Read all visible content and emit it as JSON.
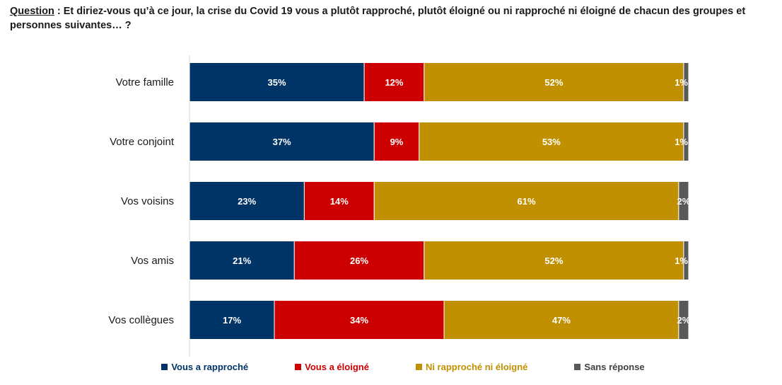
{
  "question": {
    "label": "Question",
    "separator": " :  ",
    "text": "Et diriez-vous qu’à ce jour, la crise du Covid 19 vous a plutôt rapproché, plutôt éloigné ou ni rapproché ni éloigné de chacun des groupes et personnes suivantes… ?"
  },
  "chart_data": {
    "type": "bar",
    "orientation": "horizontal",
    "stacked": true,
    "normalized": true,
    "categories": [
      "Votre famille",
      "Votre conjoint",
      "Vos voisins",
      "Vos amis",
      "Vos collègues"
    ],
    "series": [
      {
        "name": "Vous a rapproché",
        "color": "#003366",
        "values": [
          35,
          37,
          23,
          21,
          17
        ],
        "labels": [
          "35%",
          "37%",
          "23%",
          "21%",
          "17%"
        ]
      },
      {
        "name": "Vous a éloigné",
        "color": "#cc0000",
        "values": [
          12,
          9,
          14,
          26,
          34
        ],
        "labels": [
          "12%",
          "9%",
          "14%",
          "26%",
          "34%"
        ]
      },
      {
        "name": "Ni rapproché ni éloigné",
        "color": "#c09000",
        "values": [
          52,
          53,
          61,
          52,
          47
        ],
        "labels": [
          "52%",
          "53%",
          "61%",
          "52%",
          "47%"
        ]
      },
      {
        "name": "Sans réponse",
        "color": "#595959",
        "values": [
          1,
          1,
          2,
          1,
          2
        ],
        "labels": [
          "1%",
          "1%",
          "2%",
          "1%",
          "2%"
        ]
      }
    ],
    "legend_position": "bottom",
    "grid": false
  }
}
